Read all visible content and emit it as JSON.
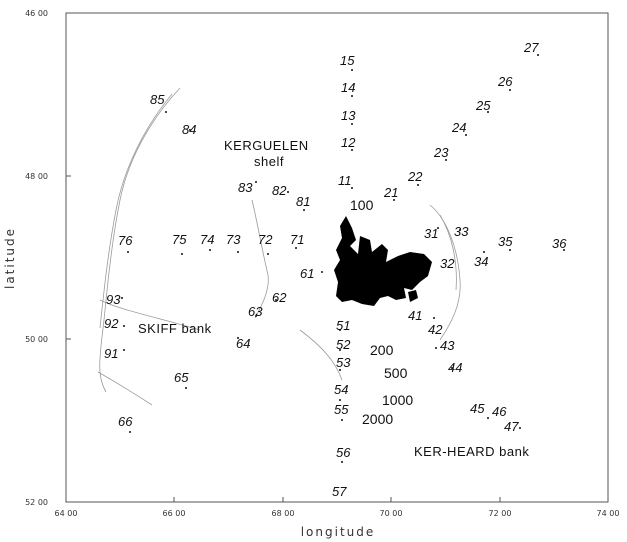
{
  "axes": {
    "x_title": "longitude",
    "y_title": "latitude",
    "x_ticks": [
      "64 00",
      "66 00",
      "68 00",
      "70 00",
      "72 00",
      "74 00"
    ],
    "y_ticks": [
      "46 00",
      "48 00",
      "50 00",
      "52 00"
    ]
  },
  "place_labels": {
    "kerguelen": "KERGUELEN",
    "shelf": "shelf",
    "skiff": "SKIFF bank",
    "kerheard": "KER-HEARD bank"
  },
  "depth_labels": [
    "100",
    "200",
    "500",
    "1000",
    "2000"
  ],
  "stations": [
    "15",
    "14",
    "13",
    "12",
    "11",
    "21",
    "22",
    "23",
    "24",
    "25",
    "26",
    "27",
    "31",
    "32",
    "33",
    "34",
    "35",
    "36",
    "41",
    "42",
    "43",
    "44",
    "45",
    "46",
    "47",
    "51",
    "52",
    "53",
    "54",
    "55",
    "56",
    "57",
    "61",
    "62",
    "63",
    "64",
    "65",
    "66",
    "71",
    "72",
    "73",
    "74",
    "75",
    "76",
    "81",
    "82",
    "83",
    "84",
    "85",
    "91",
    "92",
    "93"
  ],
  "colors": {
    "land": "#000000",
    "ink": "#111111",
    "frame": "#555555",
    "contour": "#9a9a9a"
  }
}
